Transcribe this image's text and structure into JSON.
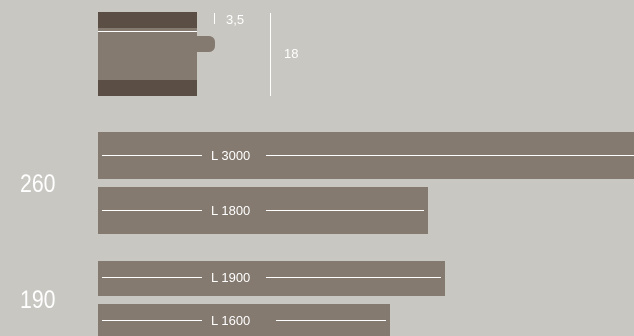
{
  "profile": {
    "thickness_label": "3,5",
    "height_label": "18"
  },
  "groups": [
    {
      "width_label": "260",
      "planks": [
        {
          "length_label": "L 3000",
          "length_mm": 3000
        },
        {
          "length_label": "L 1800",
          "length_mm": 1800
        }
      ]
    },
    {
      "width_label": "190",
      "planks": [
        {
          "length_label": "L 1900",
          "length_mm": 1900
        },
        {
          "length_label": "L 1600",
          "length_mm": 1600
        }
      ]
    }
  ],
  "colors": {
    "background": "#c9c7c1",
    "plank": "#857a70",
    "profile_dark": "#5b4e44",
    "line": "#ffffff"
  }
}
